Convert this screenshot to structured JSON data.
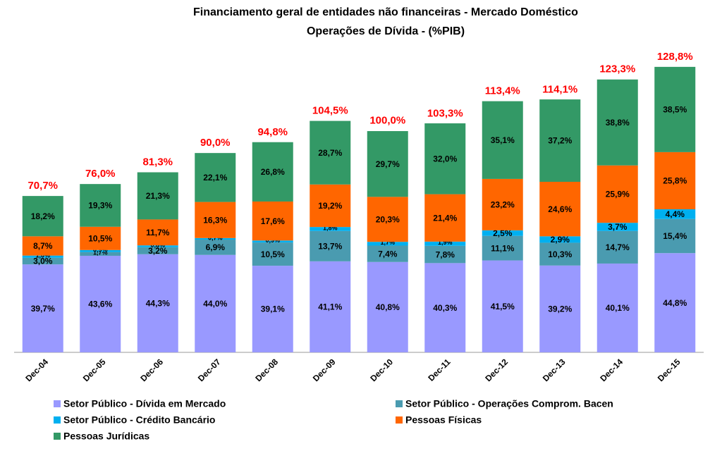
{
  "chart_data": {
    "type": "stacked_bar",
    "title": "Financiamento geral de entidades não financeiras - Mercado Doméstico",
    "subtitle": "Operações de Dívida - (%PIB)",
    "categories": [
      "Dec-04",
      "Dec-05",
      "Dec-06",
      "Dec-07",
      "Dec-08",
      "Dec-09",
      "Dec-10",
      "Dec-11",
      "Dec-12",
      "Dec-13",
      "Dec-14",
      "Dec-15"
    ],
    "ylim": [
      0,
      140
    ],
    "series": [
      {
        "name": "Setor Público - Dívida em Mercado",
        "color": "#9999ff",
        "values": [
          39.7,
          43.6,
          44.3,
          44.0,
          39.1,
          41.1,
          40.8,
          40.3,
          41.5,
          39.2,
          40.1,
          44.8
        ],
        "value_labels": [
          "39,7%",
          "43,6%",
          "44,3%",
          "44,0%",
          "39,1%",
          "41,1%",
          "40,8%",
          "40,3%",
          "41,5%",
          "39,2%",
          "40,1%",
          "44,8%"
        ]
      },
      {
        "name": "Setor Público - Operações Comprom. Bacen",
        "color": "#4a9bb0",
        "values": [
          3.0,
          1.7,
          3.2,
          6.9,
          10.5,
          13.7,
          7.4,
          7.8,
          11.1,
          10.3,
          14.7,
          15.4
        ],
        "value_labels": [
          "3,0%",
          "1,7%",
          "3,2%",
          "6,9%",
          "10,5%",
          "13,7%",
          "7,4%",
          "7,8%",
          "11,1%",
          "10,3%",
          "14,7%",
          "15,4%"
        ]
      },
      {
        "name": "Setor Público - Crédito Bancário",
        "color": "#00b0f0",
        "values": [
          1.0,
          0.9,
          0.8,
          0.7,
          0.9,
          1.8,
          1.7,
          1.9,
          2.5,
          2.9,
          3.7,
          4.4
        ],
        "value_labels": [
          "1,0%",
          "0,9%",
          "0,8%",
          "0,7%",
          "0,9%",
          "1,8%",
          "1,7%",
          "1,9%",
          "2,5%",
          "2,9%",
          "3,7%",
          "4,4%"
        ]
      },
      {
        "name": "Pessoas Físicas",
        "color": "#ff6600",
        "values": [
          8.7,
          10.5,
          11.7,
          16.3,
          17.6,
          19.2,
          20.3,
          21.4,
          23.2,
          24.6,
          25.9,
          25.8
        ],
        "value_labels": [
          "8,7%",
          "10,5%",
          "11,7%",
          "16,3%",
          "17,6%",
          "19,2%",
          "20,3%",
          "21,4%",
          "23,2%",
          "24,6%",
          "25,9%",
          "25,8%"
        ]
      },
      {
        "name": "Pessoas Jurídicas",
        "color": "#339966",
        "values": [
          18.2,
          19.3,
          21.3,
          22.1,
          26.8,
          28.7,
          29.7,
          32.0,
          35.1,
          37.2,
          38.8,
          38.5
        ],
        "value_labels": [
          "18,2%",
          "19,3%",
          "21,3%",
          "22,1%",
          "26,8%",
          "28,7%",
          "29,7%",
          "32,0%",
          "35,1%",
          "37,2%",
          "38,8%",
          "38,5%"
        ]
      }
    ],
    "totals": [
      70.7,
      76.0,
      81.3,
      90.0,
      94.8,
      104.5,
      100.0,
      103.3,
      113.4,
      114.1,
      123.3,
      128.8
    ],
    "total_labels": [
      "70,7%",
      "76,0%",
      "81,3%",
      "90,0%",
      "94,8%",
      "104,5%",
      "100,0%",
      "103,3%",
      "113,4%",
      "114,1%",
      "123,3%",
      "128,8%"
    ],
    "total_color": "#ff0000"
  }
}
